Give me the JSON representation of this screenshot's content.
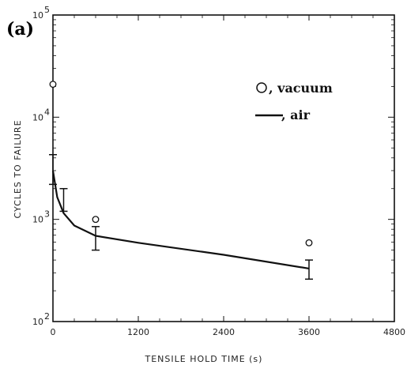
{
  "panel_label": "(a)",
  "chart_data": {
    "type": "line",
    "xlabel": "TENSILE HOLD TIME (s)",
    "ylabel": "CYCLES TO FAILURE",
    "xlim": [
      0,
      4800
    ],
    "ylim": [
      100,
      100000
    ],
    "yscale": "log",
    "x_ticks": [
      "0",
      "1200",
      "2400",
      "3600",
      "4800"
    ],
    "y_ticks": [
      {
        "base": "10",
        "exp": "2",
        "value": 100
      },
      {
        "base": "10",
        "exp": "3",
        "value": 1000
      },
      {
        "base": "10",
        "exp": "4",
        "value": 10000
      },
      {
        "base": "10",
        "exp": "5",
        "value": 100000
      }
    ],
    "grid": false,
    "legend_position": "top-right",
    "series": [
      {
        "name": ", vacuum",
        "marker": "circle",
        "x": [
          0,
          600,
          3600
        ],
        "y": [
          21000,
          1000,
          590
        ]
      },
      {
        "name": ", air",
        "marker": "line",
        "x": [
          0,
          60,
          150,
          300,
          600,
          1200,
          2400,
          3600
        ],
        "y": [
          3000,
          1650,
          1150,
          870,
          690,
          590,
          450,
          330
        ]
      }
    ],
    "error_bars": [
      {
        "x": 0,
        "low": 2200,
        "high": 4300
      },
      {
        "x": 150,
        "low": 1200,
        "high": 2000
      },
      {
        "x": 600,
        "low": 500,
        "high": 850
      },
      {
        "x": 3600,
        "low": 260,
        "high": 400
      }
    ]
  }
}
